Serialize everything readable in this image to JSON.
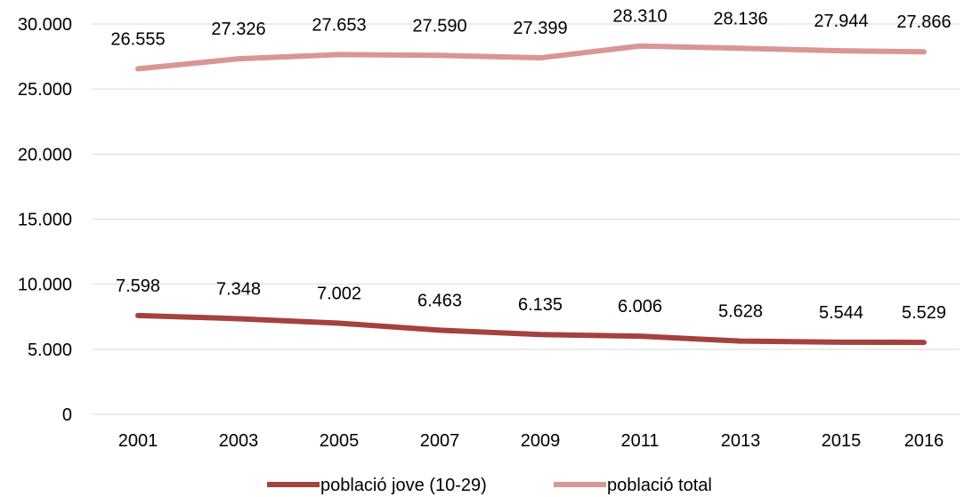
{
  "chart_data": {
    "type": "line",
    "title": "",
    "xlabel": "",
    "ylabel": "",
    "categories": [
      "2001",
      "2003",
      "2005",
      "2007",
      "2009",
      "2011",
      "2013",
      "2015",
      "2016"
    ],
    "ylim": [
      0,
      30000
    ],
    "yticks": [
      0,
      5000,
      10000,
      15000,
      20000,
      25000,
      30000
    ],
    "ytick_labels": [
      "0",
      "5.000",
      "10.000",
      "15.000",
      "20.000",
      "25.000",
      "30.000"
    ],
    "grid": true,
    "legend_position": "bottom",
    "series": [
      {
        "name": "població jove (10-29)",
        "color": "#a5413f",
        "values": [
          7598,
          7348,
          7002,
          6463,
          6135,
          6006,
          5628,
          5544,
          5529
        ],
        "labels": [
          "7.598",
          "7.348",
          "7.002",
          "6.463",
          "6.135",
          "6.006",
          "5.628",
          "5.544",
          "5.529"
        ]
      },
      {
        "name": "població total",
        "color": "#d99694",
        "values": [
          26555,
          27326,
          27653,
          27590,
          27399,
          28310,
          28136,
          27944,
          27866
        ],
        "labels": [
          "26.555",
          "27.326",
          "27.653",
          "27.590",
          "27.399",
          "28.310",
          "28.136",
          "27.944",
          "27.866"
        ]
      }
    ]
  }
}
